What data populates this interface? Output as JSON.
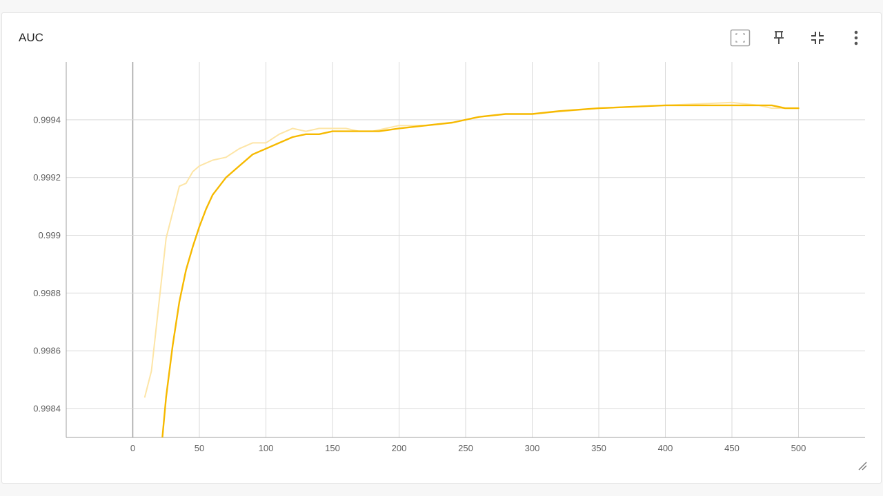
{
  "card": {
    "title": "AUC"
  },
  "toolbar": {
    "icons": [
      "fit-domain-icon",
      "pin-icon",
      "collapse-icon",
      "more-vert-icon"
    ]
  },
  "colors": {
    "raw_line": "#fde5a6",
    "smoothed_line": "#f6b900",
    "grid": "#d9d9d9",
    "axis": "#a0a0a0"
  },
  "chart_data": {
    "type": "line",
    "title": "AUC",
    "xlabel": "",
    "ylabel": "",
    "xlim": [
      -50,
      550
    ],
    "ylim": [
      0.9983,
      0.9996
    ],
    "x_ticks": [
      0,
      50,
      100,
      150,
      200,
      250,
      300,
      350,
      400,
      450,
      500
    ],
    "y_ticks": [
      0.9984,
      0.9986,
      0.9988,
      0.999,
      0.9992,
      0.9994
    ],
    "x_tick_labels": [
      "0",
      "50",
      "100",
      "150",
      "200",
      "250",
      "300",
      "350",
      "400",
      "450",
      "500"
    ],
    "y_tick_labels": [
      "0.9984",
      "0.9986",
      "0.9988",
      "0.999",
      "0.9992",
      "0.9994"
    ],
    "grid": true,
    "legend": "none",
    "series": [
      {
        "style": "raw",
        "x": [
          9,
          14,
          20,
          25,
          30,
          35,
          40,
          45,
          50,
          60,
          70,
          80,
          90,
          100,
          110,
          120,
          130,
          140,
          150,
          160,
          170,
          180,
          190,
          200,
          220,
          240,
          260,
          280,
          300,
          350,
          400,
          450,
          470,
          480,
          490,
          500
        ],
        "y": [
          0.99844,
          0.99853,
          0.99878,
          0.99899,
          0.99908,
          0.99917,
          0.99918,
          0.99922,
          0.99924,
          0.99926,
          0.99927,
          0.9993,
          0.99932,
          0.99932,
          0.99935,
          0.99937,
          0.99936,
          0.99937,
          0.99937,
          0.99937,
          0.99936,
          0.99936,
          0.99937,
          0.99938,
          0.99938,
          0.99939,
          0.99941,
          0.99942,
          0.99942,
          0.99944,
          0.99945,
          0.99946,
          0.99945,
          0.99944,
          0.99944,
          0.99944
        ]
      },
      {
        "style": "smoothed",
        "x": [
          22,
          25,
          30,
          35,
          40,
          45,
          50,
          55,
          60,
          70,
          80,
          90,
          100,
          110,
          120,
          130,
          140,
          150,
          165,
          175,
          185,
          200,
          220,
          240,
          260,
          280,
          300,
          320,
          350,
          400,
          450,
          470,
          480,
          490,
          500
        ],
        "y": [
          0.99829,
          0.99844,
          0.99862,
          0.99877,
          0.99888,
          0.99896,
          0.99903,
          0.99909,
          0.99914,
          0.9992,
          0.99924,
          0.99928,
          0.9993,
          0.99932,
          0.99934,
          0.99935,
          0.99935,
          0.99936,
          0.99936,
          0.99936,
          0.99936,
          0.99937,
          0.99938,
          0.99939,
          0.99941,
          0.99942,
          0.99942,
          0.99943,
          0.99944,
          0.99945,
          0.99945,
          0.99945,
          0.99945,
          0.99944,
          0.99944
        ]
      }
    ]
  }
}
